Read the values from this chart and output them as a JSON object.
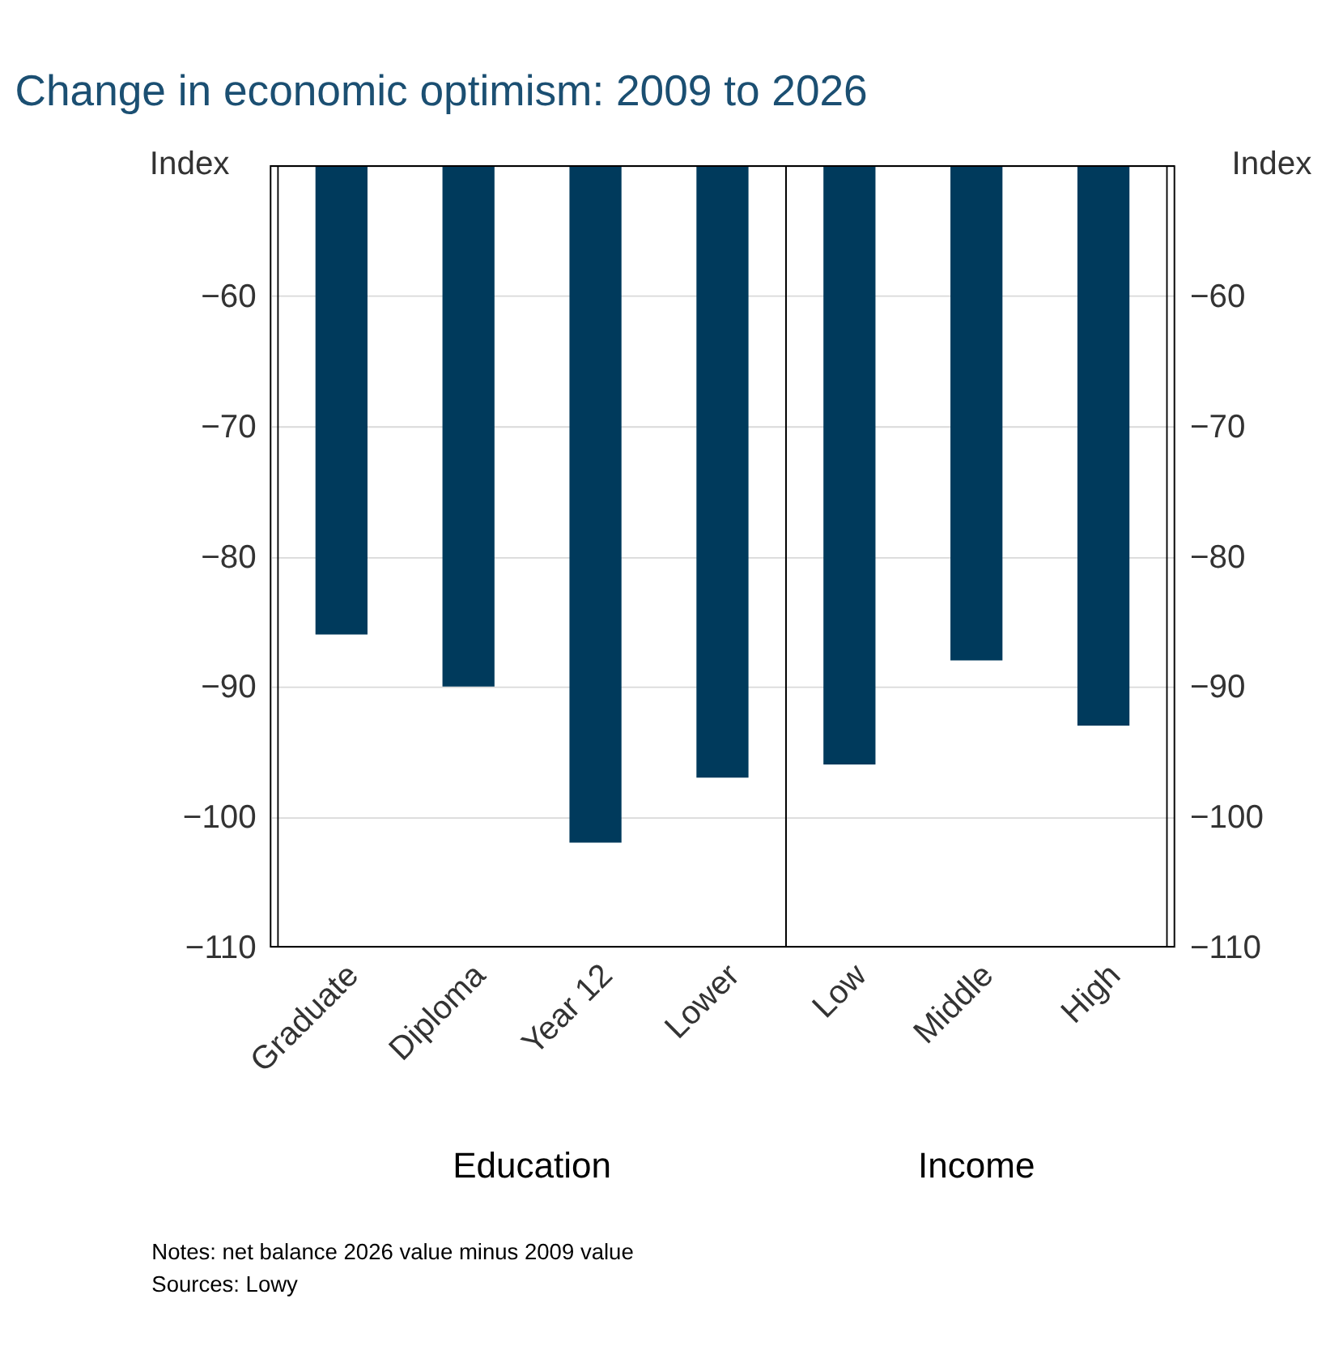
{
  "chart_data": {
    "type": "bar",
    "title": "Change in economic optimism: 2009 to 2026",
    "categories": [
      "Graduate",
      "Diploma",
      "Year 12",
      "Lower",
      "Low",
      "Middle",
      "High"
    ],
    "values": [
      -86,
      -90,
      -102,
      -97,
      -96,
      -88,
      -93
    ],
    "color": "#003a5c",
    "ylabel": "Index",
    "y2label": "Index",
    "ylim": [
      -110,
      -50
    ],
    "yticks": [
      -110,
      -100,
      -90,
      -80,
      -70,
      -60
    ],
    "y2lim": [
      -110,
      -50
    ],
    "y2ticks": [
      -110,
      -100,
      -90,
      -80,
      -70,
      -60
    ],
    "grid": "y",
    "annotations": [
      "Education",
      "Income",
      "Notes: net balance 2026 value minus 2009 value",
      "Sources: Lowy"
    ]
  }
}
